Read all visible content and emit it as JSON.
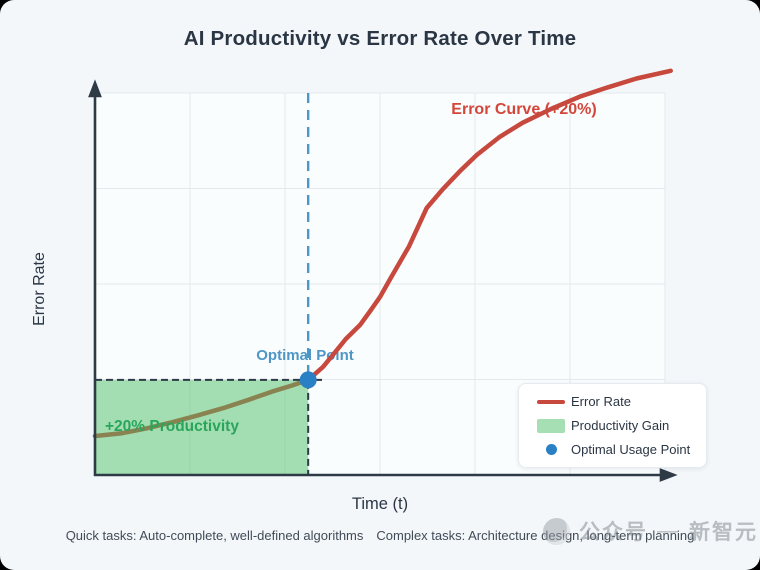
{
  "title": "AI Productivity vs Error Rate Over Time",
  "axes": {
    "x_label": "Time (t)",
    "y_label": "Error Rate"
  },
  "annotations": {
    "error_curve_label": "Error Curve (+20%)",
    "productivity_label": "+20% Productivity",
    "optimal_point_label": "Optimal Point"
  },
  "legend": {
    "items": [
      {
        "label": "Error Rate",
        "swatch": "line-swatch"
      },
      {
        "label": "Productivity Gain",
        "swatch": "area-swatch"
      },
      {
        "label": "Optimal Usage Point",
        "swatch": "point-swatch"
      }
    ]
  },
  "footnotes": {
    "quick": "Quick tasks: Auto-complete, well-defined algorithms",
    "complex": "Complex tasks: Architecture design, long-term planning"
  },
  "watermark": {
    "prefix": "公众号",
    "separator": "—",
    "name": "新智元"
  },
  "colors": {
    "curve_red": "#c7483d",
    "label_red": "#d4463a",
    "productivity_fill": "#4bbd65",
    "productivity_text": "#2aa55c",
    "optimal_blue": "#2a80c4",
    "dashed_blue": "#4d96c6",
    "axis_dark": "#2e3a46",
    "grid": "#e3e9ef",
    "plot_bg": "#fafdfe",
    "legend_green_swatch": "#a6dfb3"
  },
  "chart_data": {
    "type": "line",
    "title": "AI Productivity vs Error Rate Over Time",
    "xlabel": "Time (t)",
    "ylabel": "Error Rate",
    "x_range": [
      0,
      10
    ],
    "y_range": [
      0,
      1
    ],
    "grid": true,
    "tick_labels_visible": false,
    "legend_position": "lower right",
    "series": [
      {
        "name": "Error Rate",
        "shape": "s-curve rising, sharp bend near t=5.8, overshoots top at right",
        "points": [
          [
            0,
            0.102
          ],
          [
            0.45,
            0.109
          ],
          [
            0.9,
            0.122
          ],
          [
            1.35,
            0.138
          ],
          [
            1.8,
            0.156
          ],
          [
            2.25,
            0.175
          ],
          [
            2.7,
            0.197
          ],
          [
            3.1,
            0.218
          ],
          [
            3.45,
            0.234
          ],
          [
            3.74,
            0.249
          ],
          [
            4.0,
            0.283
          ],
          [
            4.2,
            0.319
          ],
          [
            4.4,
            0.356
          ],
          [
            4.65,
            0.393
          ],
          [
            4.84,
            0.432
          ],
          [
            5.0,
            0.466
          ],
          [
            5.19,
            0.516
          ],
          [
            5.51,
            0.599
          ],
          [
            5.82,
            0.699
          ],
          [
            6.1,
            0.748
          ],
          [
            6.4,
            0.795
          ],
          [
            6.7,
            0.838
          ],
          [
            7.1,
            0.885
          ],
          [
            7.5,
            0.922
          ],
          [
            8.0,
            0.958
          ],
          [
            8.5,
            0.99
          ],
          [
            9.0,
            1.015
          ],
          [
            9.5,
            1.038
          ],
          [
            10.1,
            1.058
          ]
        ]
      }
    ],
    "optimal_point": {
      "x": 3.74,
      "y": 0.249,
      "label": "Optimal Usage Point"
    },
    "productivity_region": {
      "x": [
        0,
        3.74
      ],
      "y": [
        0,
        0.249
      ],
      "label": "Productivity Gain"
    }
  }
}
